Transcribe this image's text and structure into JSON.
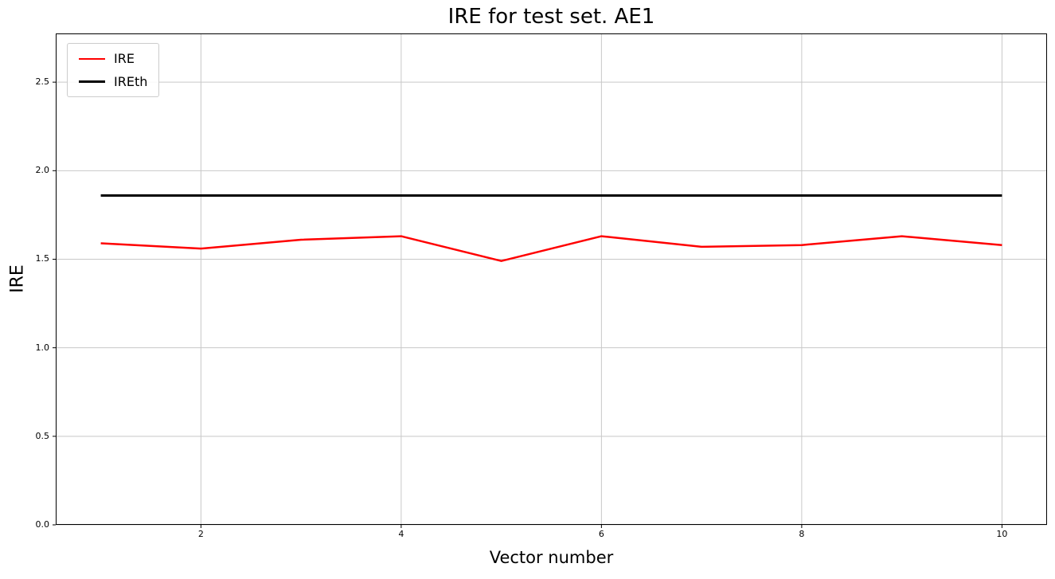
{
  "chart_data": {
    "type": "line",
    "title": "IRE for test set. AE1",
    "xlabel": "Vector number",
    "ylabel": "IRE",
    "xlim": [
      0.55,
      10.45
    ],
    "ylim": [
      0,
      2.775
    ],
    "xticks": [
      2,
      4,
      6,
      8,
      10
    ],
    "yticks": [
      0.0,
      0.5,
      1.0,
      1.5,
      2.0,
      2.5
    ],
    "xtick_labels": [
      "2",
      "4",
      "6",
      "8",
      "10"
    ],
    "ytick_labels": [
      "0.0",
      "0.5",
      "1.0",
      "1.5",
      "2.0",
      "2.5"
    ],
    "grid": true,
    "grid_color": "#c8c8c8",
    "spine_color": "#000000",
    "legend_position": "upper-left",
    "series": [
      {
        "name": "IRE",
        "color": "#ff0000",
        "width": 2.5,
        "x": [
          1,
          2,
          3,
          4,
          5,
          6,
          7,
          8,
          9,
          10
        ],
        "y": [
          1.59,
          1.56,
          1.61,
          1.63,
          1.49,
          1.63,
          1.57,
          1.58,
          1.63,
          1.58
        ]
      },
      {
        "name": "IREth",
        "color": "#000000",
        "width": 3,
        "x": [
          1,
          10
        ],
        "y": [
          1.86,
          1.86
        ]
      }
    ]
  }
}
